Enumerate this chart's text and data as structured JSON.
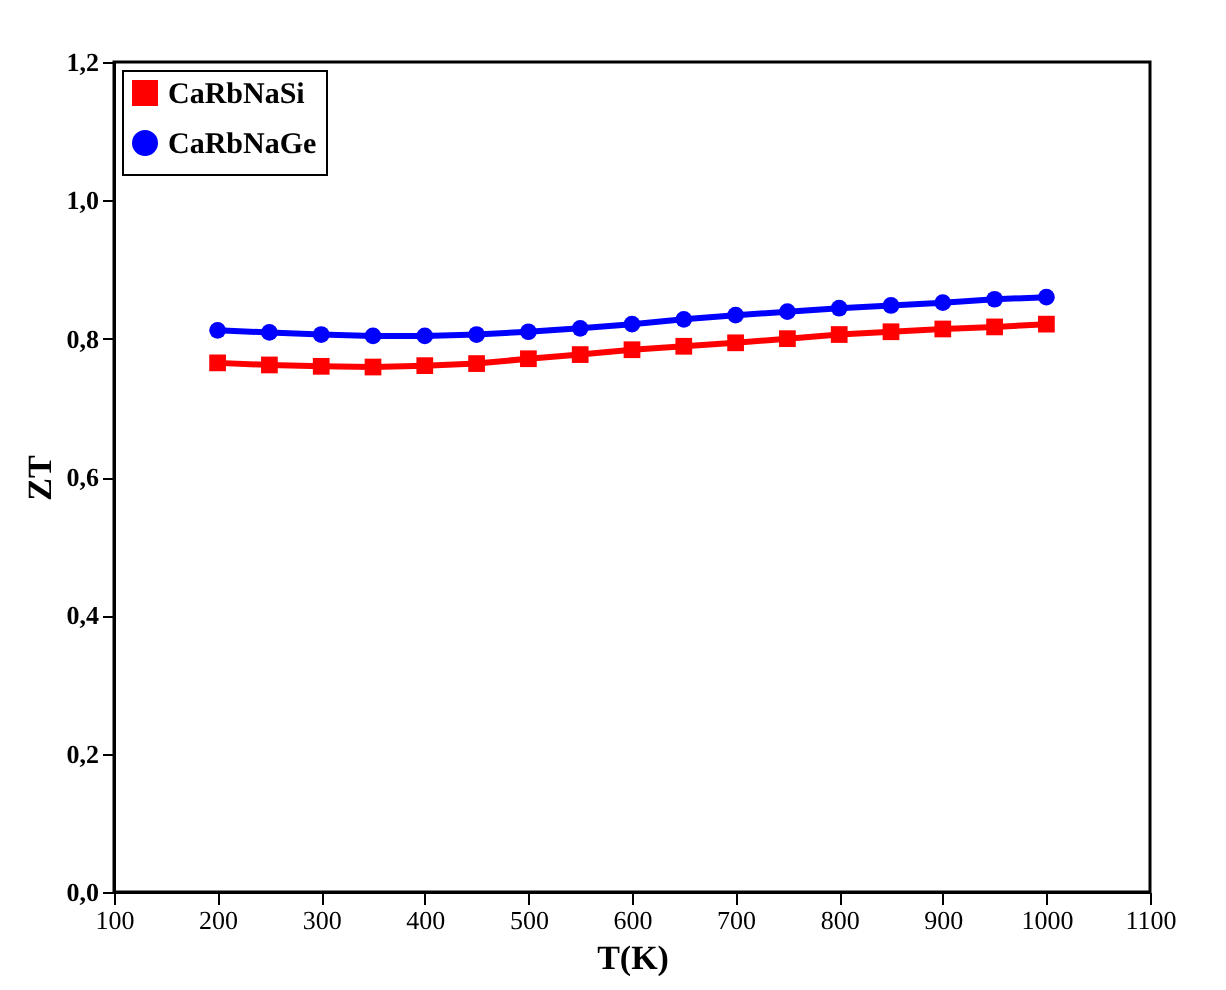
{
  "chart_data": {
    "type": "line",
    "xlabel": "T(K)",
    "ylabel": "ZT",
    "x": [
      200,
      250,
      300,
      350,
      400,
      450,
      500,
      550,
      600,
      650,
      700,
      750,
      800,
      850,
      900,
      950,
      1000
    ],
    "series": [
      {
        "name": "CaRbNaSi",
        "color": "#ff0000",
        "marker": "square",
        "values": [
          0.765,
          0.762,
          0.76,
          0.759,
          0.761,
          0.764,
          0.771,
          0.777,
          0.784,
          0.789,
          0.794,
          0.8,
          0.806,
          0.81,
          0.814,
          0.817,
          0.821
        ]
      },
      {
        "name": "CaRbNaGe",
        "color": "#0000ff",
        "marker": "circle",
        "values": [
          0.812,
          0.809,
          0.806,
          0.804,
          0.804,
          0.806,
          0.81,
          0.815,
          0.821,
          0.828,
          0.834,
          0.839,
          0.844,
          0.848,
          0.852,
          0.857,
          0.86
        ]
      }
    ],
    "xlim": [
      100,
      1100
    ],
    "xticks": [
      100,
      200,
      300,
      400,
      500,
      600,
      700,
      800,
      900,
      1000,
      1100
    ],
    "ylim": [
      0,
      1.2
    ],
    "yticks": [
      {
        "value": 0,
        "label": "0,0"
      },
      {
        "value": 0.2,
        "label": "0,2"
      },
      {
        "value": 0.4,
        "label": "0,4"
      },
      {
        "value": 0.6,
        "label": "0,6"
      },
      {
        "value": 0.8,
        "label": "0,8"
      },
      {
        "value": 1.0,
        "label": "1,0"
      },
      {
        "value": 1.2,
        "label": "1,2"
      }
    ],
    "grid": false,
    "legend": "top left",
    "line_style": "solid"
  }
}
